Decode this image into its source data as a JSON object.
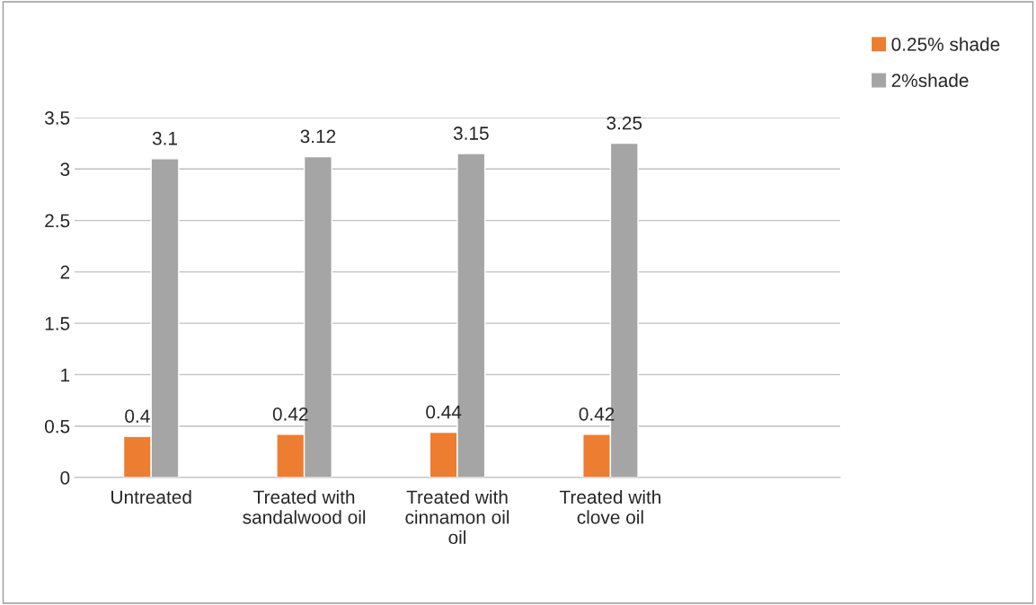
{
  "chart_data": {
    "type": "bar",
    "categories": [
      "Untreated",
      "Treated with\nsandalwood oil",
      "Treated with\ncinnamon oil\noil",
      "Treated with\nclove oil",
      null
    ],
    "series": [
      {
        "name": "0.25% shade",
        "color": "#ed7d31",
        "values": [
          0.4,
          0.42,
          0.44,
          0.42,
          null
        ]
      },
      {
        "name": "2%shade",
        "color": "#a5a5a5",
        "values": [
          3.1,
          3.12,
          3.15,
          3.25,
          null
        ]
      }
    ],
    "ylim": [
      0,
      3.5
    ],
    "yticks": [
      0,
      0.5,
      1,
      1.5,
      2,
      2.5,
      3,
      3.5
    ],
    "grid": "y",
    "legend": "top right",
    "data_labels": true
  }
}
